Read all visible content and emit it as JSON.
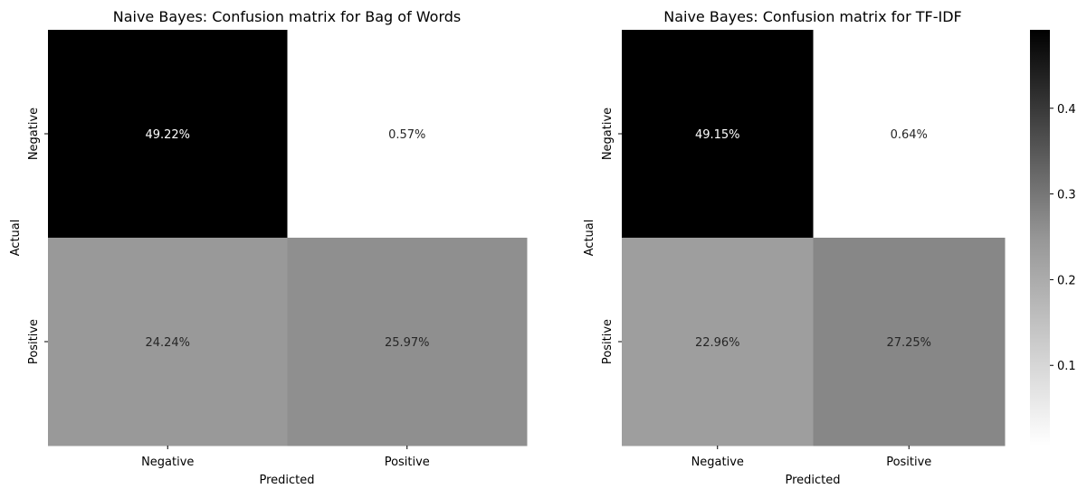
{
  "chart_data": [
    {
      "type": "heatmap",
      "title": "Naive Bayes: Confusion matrix for Bag of Words",
      "xlabel": "Predicted",
      "ylabel": "Actual",
      "x_categories": [
        "Negative",
        "Positive"
      ],
      "y_categories": [
        "Negative",
        "Positive"
      ],
      "values": [
        [
          0.4922,
          0.0057
        ],
        [
          0.2424,
          0.2597
        ]
      ],
      "annotations": [
        [
          "49.22%",
          "0.57%"
        ],
        [
          "24.24%",
          "25.97%"
        ]
      ],
      "colormap": "Greys",
      "vmin": 0.0057,
      "vmax": 0.4922
    },
    {
      "type": "heatmap",
      "title": "Naive Bayes: Confusion matrix for TF-IDF",
      "xlabel": "Predicted",
      "ylabel": "Actual",
      "x_categories": [
        "Negative",
        "Positive"
      ],
      "y_categories": [
        "Negative",
        "Positive"
      ],
      "values": [
        [
          0.4915,
          0.0064
        ],
        [
          0.2296,
          0.2725
        ]
      ],
      "annotations": [
        [
          "49.15%",
          "0.64%"
        ],
        [
          "22.96%",
          "27.25%"
        ]
      ],
      "colormap": "Greys",
      "vmin": 0.0064,
      "vmax": 0.4915,
      "colorbar": {
        "ticks": [
          0.1,
          0.2,
          0.3,
          0.4
        ],
        "tick_labels": [
          "0.1",
          "0.2",
          "0.3",
          "0.4"
        ]
      }
    }
  ]
}
